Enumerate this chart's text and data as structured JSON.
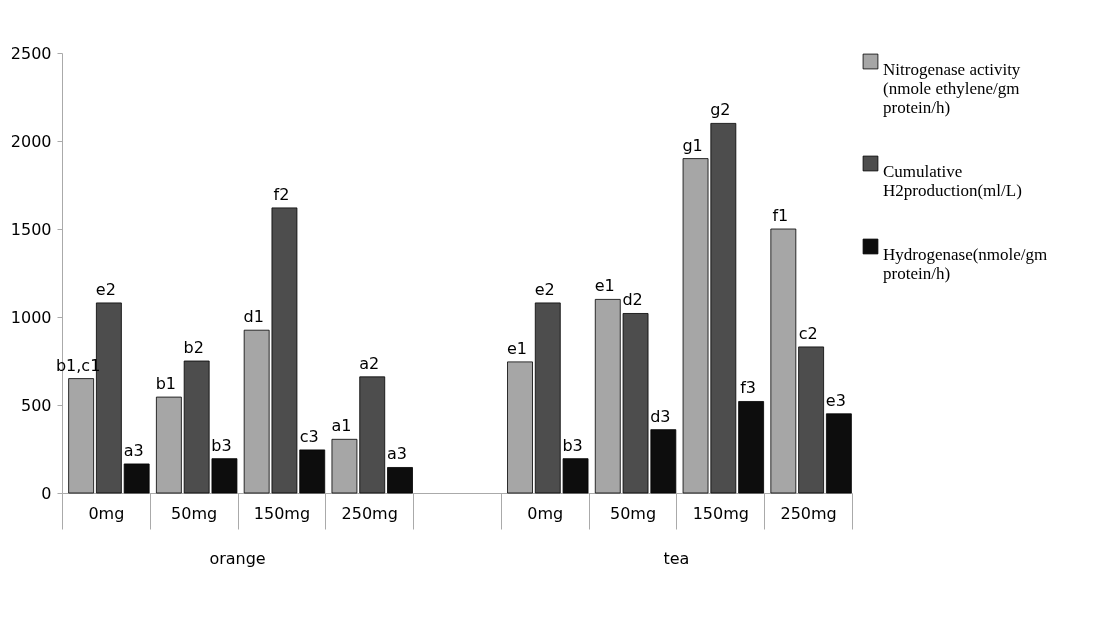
{
  "chart_data": {
    "type": "bar",
    "categories": [
      "0mg",
      "50mg",
      "150mg",
      "250mg",
      null,
      "0mg",
      "50mg",
      "150mg",
      "250mg"
    ],
    "series": [
      {
        "name": "Nitrogenase activity (nmole ethylene/gm protein/h)",
        "color": "#a6a6a6",
        "values": [
          650,
          545,
          925,
          305,
          null,
          745,
          1100,
          1900,
          1500
        ],
        "value_labels": [
          "b1,c1",
          "b1",
          "d1",
          "a1",
          null,
          "e1",
          "e1",
          "g1",
          "f1"
        ]
      },
      {
        "name": "Cumulative H2production(ml/L)",
        "color": "#4d4d4d",
        "values": [
          1080,
          750,
          1620,
          660,
          null,
          1080,
          1020,
          2100,
          830
        ],
        "value_labels": [
          "e2",
          "b2",
          "f2",
          "a2",
          null,
          "e2",
          "d2",
          "g2",
          "c2"
        ]
      },
      {
        "name": "Hydrogenase(nmole/gm protein/h)",
        "color": "#0d0d0d",
        "values": [
          165,
          195,
          245,
          145,
          null,
          195,
          360,
          520,
          450
        ],
        "value_labels": [
          "a3",
          "b3",
          "c3",
          "a3",
          null,
          "b3",
          "d3",
          "f3",
          "e3"
        ]
      }
    ],
    "annotations": [
      "orange",
      "tea"
    ],
    "ylim": [
      0,
      2500
    ],
    "yticks": [
      0,
      500,
      1000,
      1500,
      2000,
      2500
    ],
    "grid": false,
    "legend": "right"
  }
}
